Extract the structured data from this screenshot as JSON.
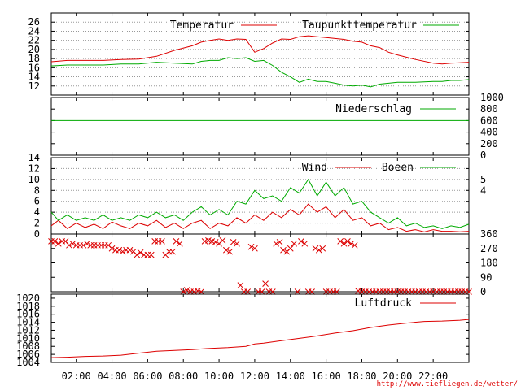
{
  "credit": "http://www.tiefliegen.de/wetter/",
  "x_ticks": [
    "02:00",
    "04:00",
    "06:00",
    "08:00",
    "10:00",
    "12:00",
    "14:00",
    "16:00",
    "18:00",
    "20:00",
    "22:00"
  ],
  "colors": {
    "red": "#dd0000",
    "green": "#00aa00",
    "credit": "#dd0000",
    "grid": "#999999",
    "frame": "#000000"
  },
  "chart_data": [
    {
      "type": "line",
      "panel": "temperature",
      "x_unit": "hour",
      "xlim": [
        0.6,
        24.0
      ],
      "ylim": [
        10,
        28
      ],
      "y_ticks": [
        12,
        14,
        16,
        18,
        20,
        22,
        24,
        26
      ],
      "grid": true,
      "legend_position": "top",
      "series": [
        {
          "name": "Temperatur",
          "color": "red",
          "x": [
            0.6,
            1.5,
            2.5,
            3.5,
            4.5,
            5.5,
            6.5,
            7.5,
            8.5,
            9.0,
            9.5,
            10.0,
            10.5,
            11.0,
            11.5,
            12.0,
            12.5,
            13.0,
            13.5,
            14.0,
            14.5,
            15.0,
            15.5,
            16.0,
            16.5,
            17.0,
            17.5,
            18.0,
            18.5,
            19.0,
            19.5,
            20.0,
            21.0,
            22.0,
            22.5,
            23.0,
            23.5,
            24.0
          ],
          "y": [
            17.3,
            17.6,
            17.6,
            17.6,
            17.8,
            17.9,
            18.5,
            19.8,
            20.8,
            21.6,
            22.0,
            22.3,
            22.0,
            22.3,
            22.2,
            19.4,
            20.2,
            21.4,
            22.3,
            22.2,
            22.8,
            23.0,
            22.8,
            22.6,
            22.4,
            22.2,
            21.8,
            21.6,
            20.8,
            20.4,
            19.4,
            18.8,
            17.8,
            17.0,
            16.8,
            17.0,
            17.1,
            17.2
          ]
        },
        {
          "name": "Taupunkttemperatur",
          "color": "green",
          "x": [
            0.6,
            1.5,
            2.5,
            3.5,
            4.5,
            5.5,
            6.5,
            7.5,
            8.5,
            9.0,
            9.5,
            10.0,
            10.5,
            11.0,
            11.5,
            12.0,
            12.5,
            13.0,
            13.5,
            14.0,
            14.5,
            15.0,
            15.5,
            16.0,
            16.5,
            17.0,
            17.5,
            18.0,
            18.5,
            19.0,
            19.5,
            20.0,
            21.0,
            22.0,
            22.5,
            23.0,
            23.5,
            24.0
          ],
          "y": [
            16.4,
            16.6,
            16.6,
            16.6,
            16.8,
            16.8,
            17.2,
            17.0,
            16.8,
            17.4,
            17.6,
            17.6,
            18.2,
            18.0,
            18.2,
            17.4,
            17.6,
            16.5,
            15.0,
            14.0,
            12.8,
            13.5,
            13.0,
            13.0,
            12.6,
            12.2,
            12.0,
            12.2,
            11.8,
            12.4,
            12.6,
            12.8,
            12.8,
            13.0,
            13.0,
            13.2,
            13.2,
            13.4
          ]
        }
      ]
    },
    {
      "type": "line",
      "panel": "precipitation",
      "x_unit": "hour",
      "xlim": [
        0.6,
        24.0
      ],
      "ylim": [
        0,
        1000
      ],
      "y_ticks": [
        0,
        200,
        400,
        600,
        800,
        1000
      ],
      "grid": false,
      "legend_position": "top-right",
      "series": [
        {
          "name": "Niederschlag",
          "color": "green",
          "x": [
            0.6,
            24.0
          ],
          "y": [
            600,
            600
          ]
        }
      ]
    },
    {
      "type": "line",
      "panel": "wind",
      "x_unit": "hour",
      "xlim": [
        0.6,
        24.0
      ],
      "ylim": [
        0,
        14
      ],
      "y_ticks": [
        0,
        2,
        4,
        6,
        8,
        10,
        12,
        14
      ],
      "y2_ticks": [
        4,
        5
      ],
      "grid": true,
      "legend_position": "top-right",
      "series": [
        {
          "name": "Wind",
          "color": "red",
          "x": [
            0.6,
            1.0,
            1.5,
            2.0,
            2.5,
            3.0,
            3.5,
            4.0,
            4.5,
            5.0,
            5.5,
            6.0,
            6.5,
            7.0,
            7.5,
            8.0,
            8.5,
            9.0,
            9.5,
            10.0,
            10.5,
            11.0,
            11.5,
            12.0,
            12.5,
            13.0,
            13.5,
            14.0,
            14.5,
            15.0,
            15.5,
            16.0,
            16.5,
            17.0,
            17.5,
            18.0,
            18.5,
            19.0,
            19.5,
            20.0,
            20.5,
            21.0,
            21.5,
            22.0,
            22.5,
            23.0,
            23.5,
            24.0
          ],
          "y": [
            1.5,
            2.5,
            1.0,
            2.0,
            1.2,
            1.8,
            1.0,
            2.2,
            1.5,
            1.0,
            2.0,
            1.5,
            2.5,
            1.2,
            2.0,
            1.0,
            2.0,
            2.5,
            1.0,
            2.0,
            1.5,
            3.0,
            2.0,
            3.5,
            2.5,
            4.0,
            3.0,
            4.5,
            3.5,
            5.5,
            4.0,
            5.0,
            3.0,
            4.5,
            2.5,
            3.0,
            1.5,
            2.0,
            0.8,
            1.2,
            0.5,
            0.8,
            0.4,
            0.8,
            0.5,
            0.5,
            0.4,
            0.5
          ]
        },
        {
          "name": "Boeen",
          "color": "green",
          "x": [
            0.6,
            1.0,
            1.5,
            2.0,
            2.5,
            3.0,
            3.5,
            4.0,
            4.5,
            5.0,
            5.5,
            6.0,
            6.5,
            7.0,
            7.5,
            8.0,
            8.5,
            9.0,
            9.5,
            10.0,
            10.5,
            11.0,
            11.5,
            12.0,
            12.5,
            13.0,
            13.5,
            14.0,
            14.5,
            15.0,
            15.5,
            16.0,
            16.5,
            17.0,
            17.5,
            18.0,
            18.5,
            19.0,
            19.5,
            20.0,
            20.5,
            21.0,
            21.5,
            22.0,
            22.5,
            23.0,
            23.5,
            24.0
          ],
          "y": [
            4.0,
            2.5,
            3.5,
            2.5,
            3.0,
            2.5,
            3.5,
            2.5,
            3.0,
            2.5,
            3.5,
            3.0,
            4.0,
            3.0,
            3.5,
            2.5,
            4.0,
            5.0,
            3.5,
            4.5,
            3.5,
            6.0,
            5.5,
            8.0,
            6.5,
            7.0,
            6.0,
            8.5,
            7.5,
            10.0,
            7.0,
            9.5,
            7.0,
            8.5,
            5.5,
            6.0,
            4.0,
            3.0,
            2.0,
            3.0,
            1.5,
            2.0,
            1.2,
            1.5,
            1.0,
            1.5,
            1.2,
            1.8
          ]
        }
      ]
    },
    {
      "type": "scatter",
      "panel": "wind_direction",
      "x_unit": "hour",
      "xlim": [
        0.6,
        24.0
      ],
      "ylim": [
        0,
        360
      ],
      "y_ticks": [
        0,
        90,
        180,
        270,
        360
      ],
      "grid": false,
      "series": [
        {
          "color": "red",
          "x": [
            0.6,
            0.8,
            1.0,
            1.2,
            1.4,
            1.6,
            1.8,
            2.0,
            2.2,
            2.4,
            2.6,
            2.8,
            3.0,
            3.2,
            3.4,
            3.6,
            3.8,
            4.0,
            4.2,
            4.4,
            4.6,
            4.8,
            5.0,
            5.2,
            5.4,
            5.6,
            5.8,
            6.0,
            6.2,
            6.4,
            6.6,
            6.8,
            7.0,
            7.2,
            7.4,
            7.6,
            7.8,
            8.0,
            8.2,
            8.4,
            8.6,
            8.8,
            9.0,
            9.2,
            9.4,
            9.6,
            9.8,
            10.0,
            10.2,
            10.4,
            10.6,
            10.8,
            11.0,
            11.2,
            11.4,
            11.6,
            11.8,
            12.0,
            12.2,
            12.4,
            12.6,
            12.8,
            13.0,
            13.2,
            13.4,
            13.6,
            13.8,
            14.0,
            14.2,
            14.4,
            14.6,
            14.8,
            15.0,
            15.2,
            15.4,
            15.6,
            15.8,
            16.0,
            16.2,
            16.4,
            16.6,
            16.8,
            17.0,
            17.2,
            17.4,
            17.6,
            17.8,
            18.0,
            18.2,
            18.4,
            18.6,
            18.8,
            19.0,
            19.2,
            19.4,
            19.6,
            19.8,
            20.0,
            20.2,
            20.4,
            20.6,
            20.8,
            21.0,
            21.2,
            21.4,
            21.6,
            21.8,
            22.0,
            22.2,
            22.4,
            22.6,
            22.8,
            23.0,
            23.2,
            23.4,
            23.6,
            23.8,
            24.0
          ],
          "y": [
            315,
            315,
            300,
            315,
            315,
            290,
            300,
            290,
            290,
            290,
            300,
            290,
            290,
            290,
            290,
            290,
            290,
            270,
            260,
            260,
            250,
            260,
            260,
            250,
            230,
            245,
            230,
            230,
            230,
            315,
            315,
            315,
            230,
            250,
            250,
            315,
            300,
            0,
            10,
            0,
            0,
            5,
            0,
            315,
            320,
            315,
            310,
            300,
            320,
            260,
            250,
            310,
            300,
            40,
            0,
            0,
            280,
            270,
            0,
            0,
            50,
            0,
            0,
            300,
            310,
            260,
            250,
            270,
            300,
            0,
            315,
            300,
            0,
            0,
            270,
            260,
            270,
            0,
            0,
            0,
            0,
            315,
            300,
            315,
            300,
            290,
            5,
            0,
            0,
            0,
            0,
            0,
            0,
            0,
            0,
            0,
            0,
            0,
            0,
            0,
            0,
            0,
            0,
            0,
            0,
            0,
            0,
            0,
            0,
            0,
            0,
            0,
            0,
            0,
            0,
            0,
            0,
            0
          ]
        }
      ]
    },
    {
      "type": "line",
      "panel": "pressure",
      "x_unit": "hour",
      "xlim": [
        0.6,
        24.0
      ],
      "ylim": [
        1004,
        1021
      ],
      "y_ticks": [
        1004,
        1006,
        1008,
        1010,
        1012,
        1014,
        1016,
        1018,
        1020
      ],
      "grid": false,
      "legend_position": "top-right",
      "series": [
        {
          "name": "Luftdruck",
          "color": "red",
          "x": [
            0.6,
            1.5,
            2.5,
            3.5,
            4.5,
            5.5,
            6.5,
            7.5,
            8.5,
            9.5,
            10.5,
            11.5,
            12.0,
            12.5,
            13.5,
            14.5,
            15.5,
            16.5,
            17.5,
            18.5,
            19.5,
            20.5,
            21.5,
            22.5,
            23.5,
            24.0
          ],
          "y": [
            1005.2,
            1005.3,
            1005.5,
            1005.6,
            1005.8,
            1006.3,
            1006.8,
            1007.0,
            1007.2,
            1007.5,
            1007.7,
            1008.0,
            1008.6,
            1008.8,
            1009.4,
            1010.0,
            1010.6,
            1011.3,
            1011.9,
            1012.7,
            1013.3,
            1013.8,
            1014.2,
            1014.3,
            1014.5,
            1014.7
          ]
        }
      ]
    }
  ]
}
